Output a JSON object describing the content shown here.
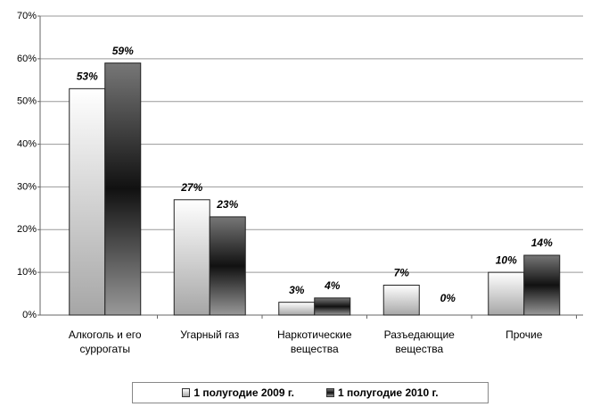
{
  "chart_data": {
    "type": "bar",
    "categories": [
      "Алкоголь и его суррогаты",
      "Угарный газ",
      "Наркотические вещества",
      "Разъедающие вещества",
      "Прочие"
    ],
    "series": [
      {
        "name": "1 полугодие 2009 г.",
        "color": "#a6a6a6",
        "values": [
          53,
          27,
          3,
          7,
          10
        ],
        "value_labels": [
          "53%",
          "27%",
          "3%",
          "7%",
          "10%"
        ]
      },
      {
        "name": "1 полугодие 2010 г.",
        "color": "#111111",
        "values": [
          59,
          23,
          4,
          0,
          14
        ],
        "value_labels": [
          "59%",
          "23%",
          "4%",
          "0%",
          "14%"
        ]
      }
    ],
    "ylim": [
      0,
      70
    ],
    "yticks": [
      {
        "value": 0,
        "label": "0%"
      },
      {
        "value": 10,
        "label": "10%"
      },
      {
        "value": 20,
        "label": "20%"
      },
      {
        "value": 30,
        "label": "30%"
      },
      {
        "value": 40,
        "label": "40%"
      },
      {
        "value": 50,
        "label": "50%"
      },
      {
        "value": 60,
        "label": "60%"
      },
      {
        "value": 70,
        "label": "70%"
      }
    ],
    "grid": true,
    "legend": "bottom"
  }
}
